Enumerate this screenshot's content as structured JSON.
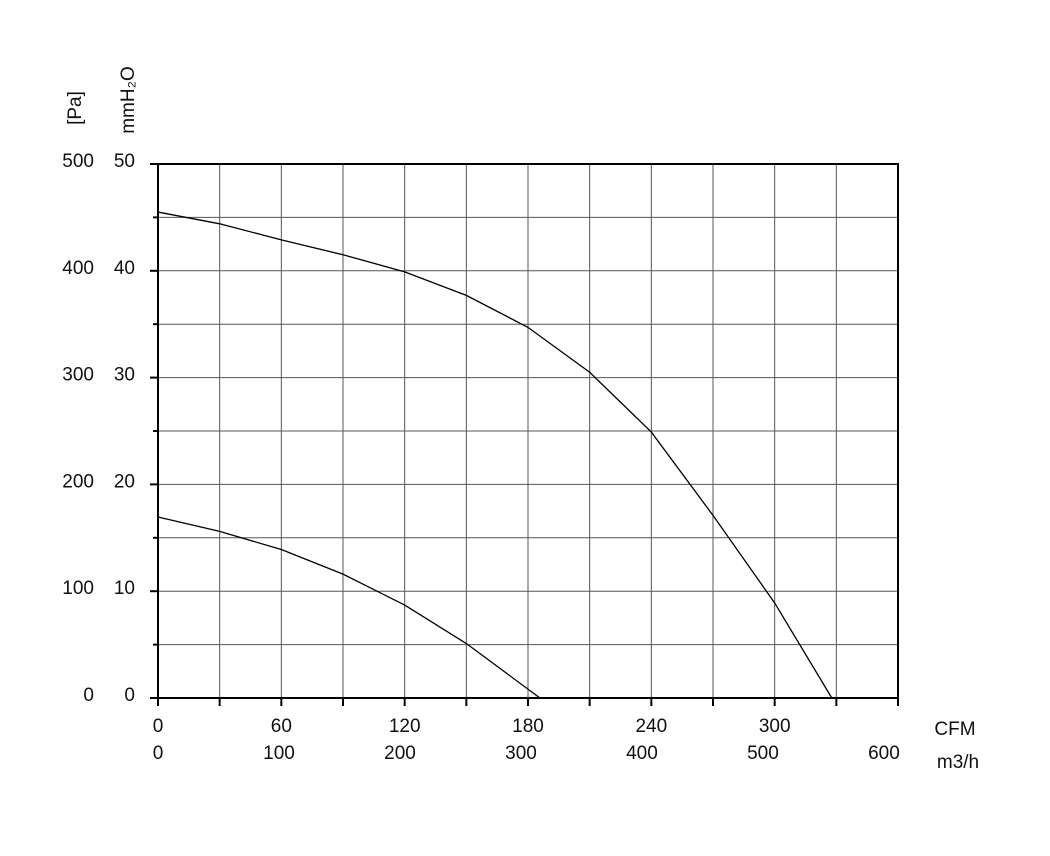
{
  "chart_data": {
    "type": "line",
    "y_title": "[Pa]",
    "y2_title": "mmH₂O",
    "x_title": "CFM",
    "x2_title": "m3/h",
    "xlim": [
      0,
      360
    ],
    "xticks": [
      0,
      60,
      120,
      180,
      240,
      300
    ],
    "x2lim": [
      0,
      611.6
    ],
    "x2ticks": [
      0,
      100,
      200,
      300,
      400,
      500,
      600
    ],
    "ylim": [
      0,
      500
    ],
    "yticks": [
      0,
      100,
      200,
      300,
      400,
      500
    ],
    "y2lim": [
      0,
      50
    ],
    "y2ticks": [
      0,
      10,
      20,
      30,
      40,
      50
    ],
    "minor_xticks": [
      30,
      90,
      150,
      210,
      270,
      330,
      360
    ],
    "minor_yticks": [
      50,
      150,
      250,
      350,
      450
    ],
    "grid": true,
    "series": [
      {
        "color": "#000000",
        "x": [
          0,
          30,
          60,
          90,
          120,
          150,
          180,
          210,
          240,
          270,
          300,
          327.8
        ],
        "values": [
          455,
          444,
          429,
          415,
          399,
          377,
          347,
          305,
          249,
          171,
          89,
          0
        ]
      },
      {
        "color": "#000000",
        "x": [
          0,
          30,
          60,
          90,
          120,
          150,
          185.8
        ],
        "values": [
          169.5,
          156,
          139,
          116,
          87,
          51,
          0
        ]
      }
    ]
  }
}
